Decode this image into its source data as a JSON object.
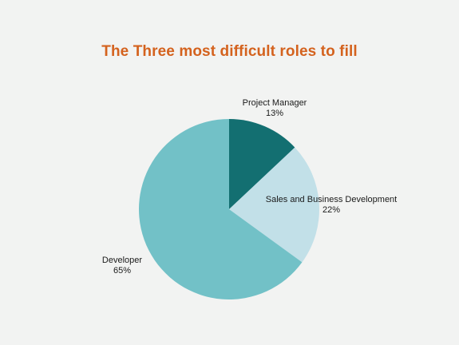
{
  "chart_data": {
    "type": "pie",
    "title": "The Three most difficult roles to fill",
    "slices": [
      {
        "label": "Project Manager",
        "value": 13,
        "value_label": "13%",
        "color": "#136f71"
      },
      {
        "label": "Sales and Business Development",
        "value": 22,
        "value_label": "22%",
        "color": "#c2e0e8"
      },
      {
        "label": "Developer",
        "value": 65,
        "value_label": "65%",
        "color": "#72c1c7"
      }
    ],
    "start_angle": "12 o'clock",
    "direction": "clockwise",
    "legend": "none",
    "label_position": "outside"
  }
}
